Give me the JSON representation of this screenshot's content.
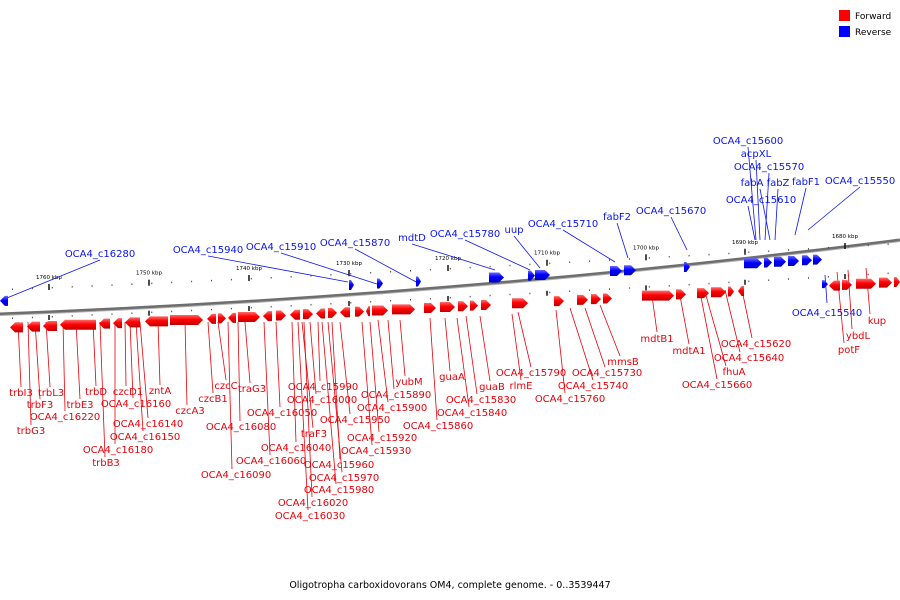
{
  "caption": "Oligotropha carboxidovorans OM4, complete genome. - 0..3539447",
  "legend": {
    "forward": {
      "label": "Forward",
      "color": "#ff0000"
    },
    "reverse": {
      "label": "Reverse",
      "color": "#0000ff"
    }
  },
  "colors": {
    "forward": "#e8000a",
    "reverse": "#0a14f0",
    "backbone": "#7a7a7a"
  },
  "ticks": [
    "1680 kbp",
    "1690 kbp",
    "1700 kbp",
    "1710 kbp",
    "1720 kbp",
    "1730 kbp",
    "1740 kbp",
    "1750 kbp",
    "1760 kbp"
  ],
  "reverse_genes": [
    "OCA4_c15600",
    "acpXL",
    "OCA4_c15570",
    "fabA",
    "fabZ",
    "fabF1",
    "OCA4_c15550",
    "OCA4_c15610",
    "OCA4_c15670",
    "fabF2",
    "OCA4_c15710",
    "uup",
    "OCA4_c15780",
    "mdtD",
    "OCA4_c15870",
    "OCA4_c15910",
    "OCA4_c15940",
    "OCA4_c16280",
    "OCA4_c15540"
  ],
  "forward_genes": [
    "kup",
    "ybdL",
    "potF",
    "mdtB1",
    "mdtA1",
    "OCA4_c15620",
    "OCA4_c15640",
    "fhuA",
    "OCA4_c15660",
    "mmsB",
    "OCA4_c15730",
    "OCA4_c15740",
    "OCA4_c15760",
    "OCA4_c15790",
    "rlmE",
    "guaB",
    "OCA4_c15830",
    "OCA4_c15840",
    "guaA",
    "OCA4_c15860",
    "yubM",
    "OCA4_c15890",
    "OCA4_c15900",
    "OCA4_c15950",
    "OCA4_c15920",
    "OCA4_c15930",
    "OCA4_c15990",
    "OCA4_c16000",
    "OCA4_c15960",
    "OCA4_c15970",
    "OCA4_c15980",
    "OCA4_c16020",
    "OCA4_c16030",
    "traF3",
    "OCA4_c16040",
    "OCA4_c16050",
    "OCA4_c16060",
    "OCA4_c16080",
    "OCA4_c16090",
    "traG3",
    "czcC",
    "czcB1",
    "czcA3",
    "zntA",
    "czcD1",
    "OCA4_c16160",
    "OCA4_c16140",
    "OCA4_c16150",
    "OCA4_c16180",
    "trbD",
    "trbE3",
    "trbB3",
    "OCA4_c16220",
    "trbI3",
    "trbF3",
    "trbL3",
    "trbG3"
  ]
}
